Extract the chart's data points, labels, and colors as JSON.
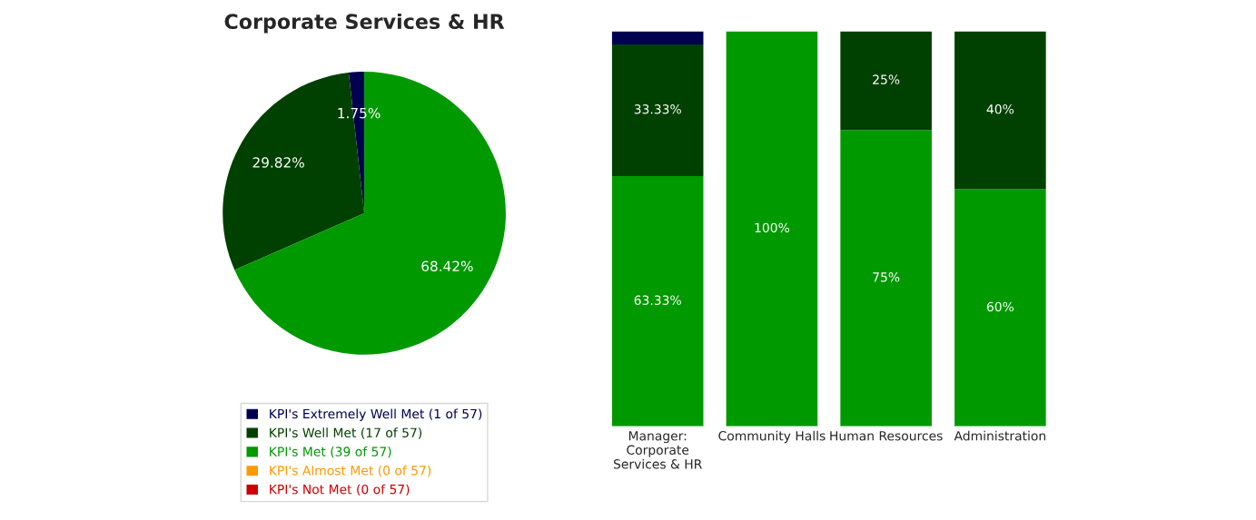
{
  "chart_data": [
    {
      "type": "pie",
      "title": "Corporate Services & HR",
      "categories": [
        "KPI's Extremely Well Met (1 of 57)",
        "KPI's Well Met (17 of 57)",
        "KPI's Met (39 of 57)",
        "KPI's Almost Met (0 of 57)",
        "KPI's Not Met (0 of 57)"
      ],
      "values": [
        1.75,
        29.82,
        68.42,
        0,
        0
      ],
      "colors": [
        "#000050",
        "#004000",
        "#009900",
        "#ff9900",
        "#cc0000"
      ],
      "value_labels": [
        "1.75%",
        "29.82%",
        "68.42%",
        null,
        null
      ],
      "legend": "bottom"
    },
    {
      "type": "bar",
      "stacked": true,
      "tick_labels": "x",
      "categories": [
        "Manager:\nCorporate\nServices & HR",
        "Community Halls",
        "Human Resources",
        "Administration"
      ],
      "ylim": [
        0,
        100
      ],
      "series": [
        {
          "color": "#009900",
          "values": [
            63.33,
            100,
            75,
            60
          ],
          "value_labels": [
            "63.33%",
            "100%",
            "75%",
            "60%"
          ]
        },
        {
          "color": "#004000",
          "values": [
            33.33,
            0,
            25,
            40
          ],
          "value_labels": [
            "33.33%",
            null,
            "25%",
            "40%"
          ]
        },
        {
          "color": "#000050",
          "values": [
            3.33,
            0,
            0,
            0
          ],
          "value_labels": [
            null,
            null,
            null,
            null
          ]
        }
      ]
    }
  ]
}
